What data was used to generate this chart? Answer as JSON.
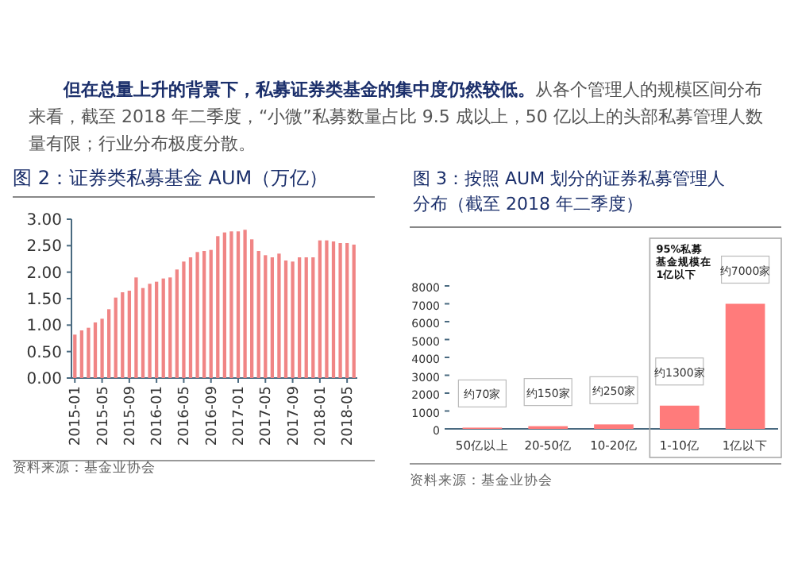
{
  "chart_data": [
    {
      "type": "other",
      "annotations": [
        "**但在总量上升的背景下，私募证券类基金的集中度仍然较低。**从各个管理人的规模区间分布来看，截至 2018 年二季度，“小微”私募数量占比 9.5 成以上，50 亿以上的头部私募管理人数量有限；行业分布极度分散。"
      ]
    },
    {
      "type": "bar",
      "title": "图 2：证券类私募基金 AUM（万亿）",
      "color": "#f08585",
      "categories": [
        "2015-01",
        null,
        null,
        null,
        "2015-05",
        null,
        null,
        null,
        "2015-09",
        null,
        null,
        null,
        "2016-01",
        null,
        null,
        null,
        "2016-05",
        null,
        null,
        null,
        "2016-09",
        null,
        null,
        null,
        "2017-01",
        null,
        null,
        null,
        "2017-05",
        null,
        null,
        null,
        "2017-09",
        null,
        null,
        null,
        "2018-01",
        null,
        null,
        null,
        "2018-05",
        null
      ],
      "values": [
        0.82,
        0.9,
        0.95,
        1.05,
        1.12,
        1.3,
        1.52,
        1.62,
        1.65,
        1.9,
        1.7,
        1.78,
        1.82,
        1.88,
        1.9,
        2.05,
        2.2,
        2.28,
        2.38,
        2.4,
        2.42,
        2.68,
        2.75,
        2.77,
        2.77,
        2.8,
        2.62,
        2.4,
        2.32,
        2.28,
        2.35,
        2.22,
        2.2,
        2.28,
        2.28,
        2.28,
        2.6,
        2.6,
        2.58,
        2.55,
        2.55,
        2.52
      ],
      "ylim": [
        0,
        3
      ],
      "yticks": [
        {
          "value": 0,
          "label": "0.00"
        },
        {
          "value": 0.5,
          "label": "0.50"
        },
        {
          "value": 1,
          "label": "1.00"
        },
        {
          "value": 1.5,
          "label": "1.50"
        },
        {
          "value": 2,
          "label": "2.00"
        },
        {
          "value": 2.5,
          "label": "2.50"
        },
        {
          "value": 3,
          "label": "3.00"
        }
      ],
      "annotations": [
        "资料来源：基金业协会"
      ]
    },
    {
      "type": "bar",
      "title": "图 3：按照 AUM 划分的证券私募管理人分布（截至 2018 年二季度）",
      "color": "#ff7b7b",
      "categories": [
        "50亿以上",
        "20-50亿",
        "10-20亿",
        "1-10亿",
        "1亿以下"
      ],
      "values": [
        70,
        150,
        250,
        1300,
        7000
      ],
      "value_labels": [
        "约70家",
        "约150家",
        "约250家",
        "约1300家",
        "约7000家"
      ],
      "ylim": [
        0,
        8000
      ],
      "yticks": [
        0,
        1000,
        2000,
        3000,
        4000,
        5000,
        6000,
        7000,
        8000
      ],
      "annotations": [
        "95%私募基金规模在1亿以下",
        "资料来源：基金业协会"
      ]
    }
  ]
}
